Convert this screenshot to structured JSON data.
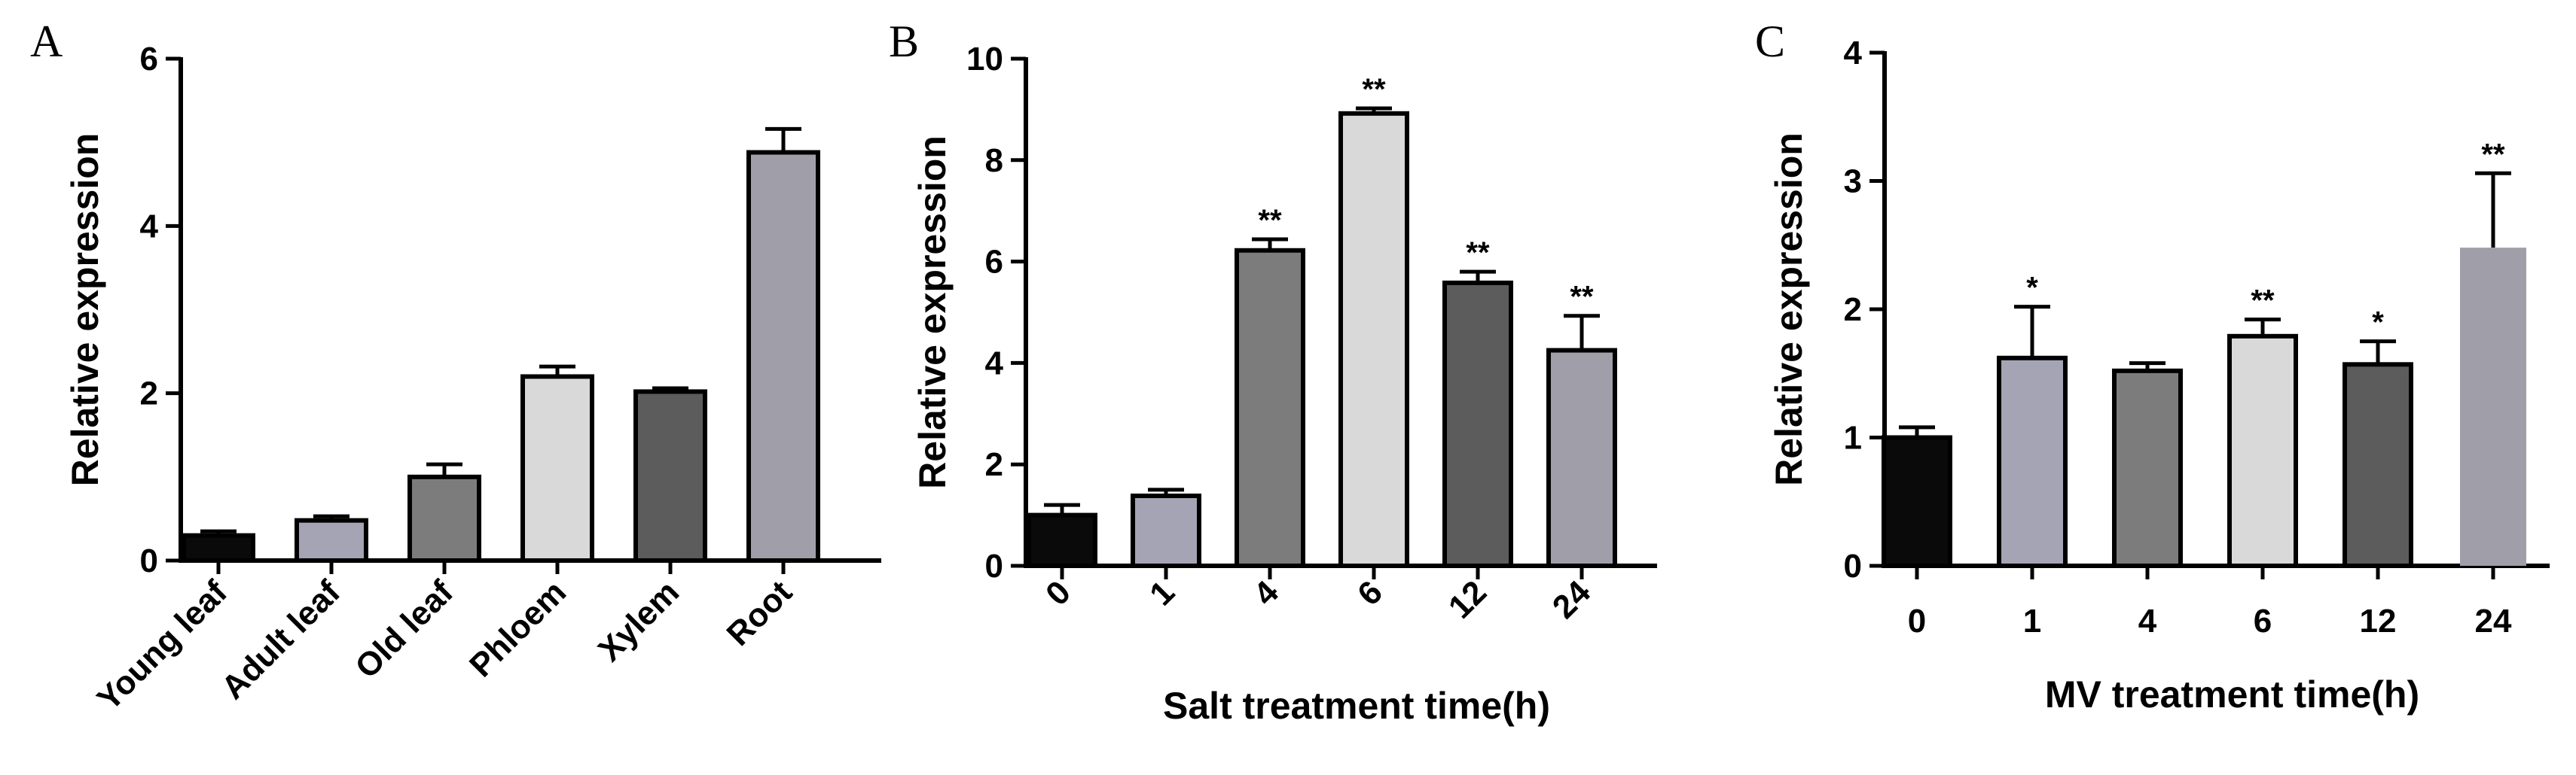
{
  "chart_data": [
    {
      "panel": "A",
      "type": "bar",
      "ylabel": "Relative expression",
      "xlabel": "",
      "ylim": [
        0,
        6
      ],
      "yticks": [
        0,
        2,
        4,
        6
      ],
      "categories": [
        "Young leaf",
        "Adult leaf",
        "Old leaf",
        "Phloem",
        "Xylem",
        "Root"
      ],
      "values": [
        0.3,
        0.48,
        1.0,
        2.2,
        2.02,
        4.88
      ],
      "errors": [
        0.05,
        0.05,
        0.15,
        0.12,
        0.04,
        0.28
      ],
      "significance": [
        "",
        "",
        "",
        "",
        "",
        ""
      ],
      "colors": [
        "#0a0a0a",
        "#a4a4b4",
        "#7c7c7c",
        "#d9d9d9",
        "#5c5c5c",
        "#a09ea8"
      ],
      "category_label_rotation": "diagonal"
    },
    {
      "panel": "B",
      "type": "bar",
      "ylabel": "Relative expression",
      "xlabel": "Salt treatment time(h)",
      "ylim": [
        0,
        10
      ],
      "yticks": [
        0,
        2,
        4,
        6,
        8,
        10
      ],
      "categories": [
        "0",
        "1",
        "4",
        "6",
        "12",
        "24"
      ],
      "values": [
        1.0,
        1.38,
        6.22,
        8.92,
        5.58,
        4.25
      ],
      "errors": [
        0.2,
        0.12,
        0.22,
        0.1,
        0.22,
        0.68
      ],
      "significance": [
        "",
        "",
        "**",
        "**",
        "**",
        "**"
      ],
      "colors": [
        "#0a0a0a",
        "#a4a4b4",
        "#7c7c7c",
        "#d9d9d9",
        "#5c5c5c",
        "#a09ea8"
      ],
      "category_label_rotation": "diagonal"
    },
    {
      "panel": "C",
      "type": "bar",
      "ylabel": "Relative expression",
      "xlabel": "MV treatment time(h)",
      "ylim": [
        0,
        4
      ],
      "yticks": [
        0,
        1,
        2,
        3,
        4
      ],
      "categories": [
        "0",
        "1",
        "4",
        "6",
        "12",
        "24"
      ],
      "values": [
        1.0,
        1.62,
        1.52,
        1.79,
        1.57,
        2.48
      ],
      "errors": [
        0.08,
        0.4,
        0.06,
        0.13,
        0.18,
        0.58
      ],
      "significance": [
        "",
        "*",
        "",
        "**",
        "*",
        "**"
      ],
      "colors": [
        "#0a0a0a",
        "#a4a4b4",
        "#7c7c7c",
        "#d9d9d9",
        "#5c5c5c",
        "#a09ea8"
      ],
      "category_label_rotation": "none"
    }
  ]
}
